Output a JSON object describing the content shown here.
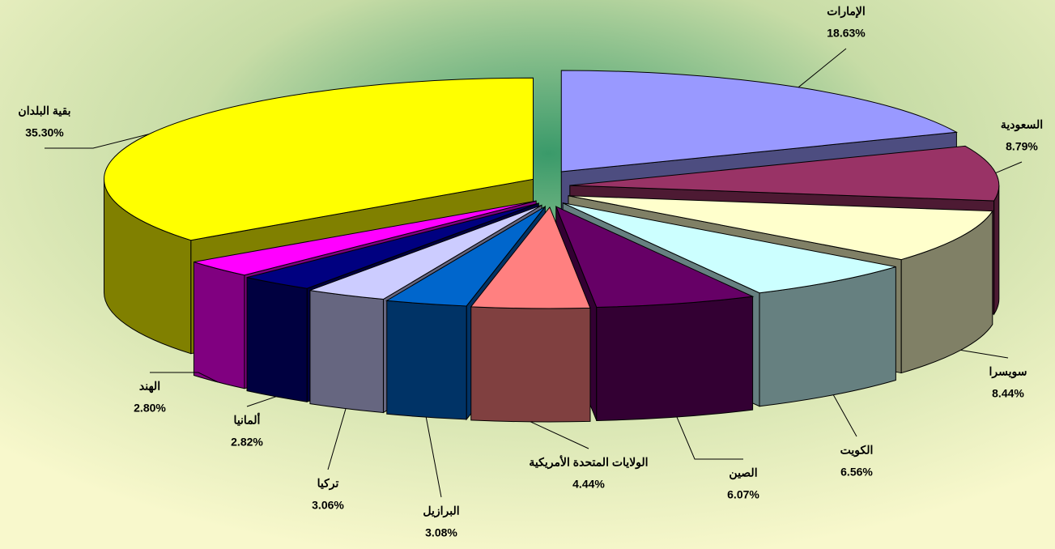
{
  "chart_data": {
    "type": "pie",
    "categories": [
      "الإمارات",
      "السعودية",
      "سويسرا",
      "الكويت",
      "الصين",
      "الولايات المتحدة الأمريكية",
      "البرازيل",
      "تركيا",
      "ألمانيا",
      "الهند",
      "بقية البلدان"
    ],
    "values": [
      18.63,
      8.79,
      8.44,
      6.56,
      6.07,
      4.44,
      3.08,
      3.06,
      2.82,
      2.8,
      35.3
    ],
    "value_labels": [
      "18.63%",
      "8.79%",
      "8.44%",
      "6.56%",
      "6.07%",
      "4.44%",
      "3.08%",
      "3.06%",
      "2.82%",
      "2.80%",
      "35.30%"
    ],
    "colors": [
      "#9999ff",
      "#993366",
      "#ffffcc",
      "#ccffff",
      "#660066",
      "#ff8080",
      "#0066cc",
      "#ccccff",
      "#000080",
      "#ff00ff",
      "#ffff00"
    ],
    "three_d": true
  }
}
